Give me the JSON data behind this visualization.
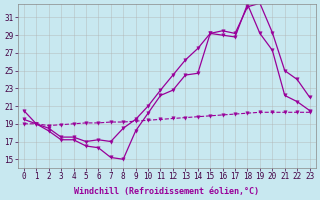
{
  "background_color": "#c8e8f0",
  "grid_color": "#b0b0b0",
  "line_color": "#990099",
  "xlabel": "Windchill (Refroidissement éolien,°C)",
  "ylabel_ticks": [
    15,
    17,
    19,
    21,
    23,
    25,
    27,
    29,
    31
  ],
  "xlim": [
    -0.5,
    23.5
  ],
  "ylim": [
    14.0,
    32.5
  ],
  "x_ticks": [
    0,
    1,
    2,
    3,
    4,
    5,
    6,
    7,
    8,
    9,
    10,
    11,
    12,
    13,
    14,
    15,
    16,
    17,
    18,
    19,
    20,
    21,
    22,
    23
  ],
  "series": [
    {
      "x": [
        0,
        1,
        2,
        3,
        4,
        5,
        6,
        7,
        8,
        9,
        10,
        11,
        12,
        13,
        14,
        15,
        16,
        17,
        18,
        19,
        20,
        21,
        22,
        23
      ],
      "y": [
        20.5,
        19.0,
        18.2,
        17.2,
        17.2,
        16.5,
        16.3,
        15.2,
        15.0,
        18.2,
        20.2,
        22.2,
        22.8,
        24.5,
        24.7,
        29.2,
        29.5,
        29.2,
        32.2,
        32.6,
        29.3,
        25.0,
        24.0,
        22.0
      ],
      "style": "-",
      "marker": "v",
      "markersize": 2.5,
      "linewidth": 0.9
    },
    {
      "x": [
        0,
        1,
        2,
        3,
        4,
        5,
        6,
        7,
        8,
        9,
        10,
        11,
        12,
        13,
        14,
        15,
        16,
        17,
        18,
        19,
        20,
        21,
        22,
        23
      ],
      "y": [
        19.5,
        19.0,
        18.5,
        17.5,
        17.5,
        17.0,
        17.2,
        17.0,
        18.5,
        19.5,
        21.0,
        22.8,
        24.5,
        26.2,
        27.5,
        29.2,
        29.0,
        28.8,
        32.5,
        29.2,
        27.3,
        22.2,
        21.5,
        20.5
      ],
      "style": "-",
      "marker": "v",
      "markersize": 2.5,
      "linewidth": 0.9
    },
    {
      "x": [
        0,
        1,
        2,
        3,
        4,
        5,
        6,
        7,
        8,
        9,
        10,
        11,
        12,
        13,
        14,
        15,
        16,
        17,
        18,
        19,
        20,
        21,
        22,
        23
      ],
      "y": [
        19.0,
        19.0,
        18.8,
        18.9,
        19.0,
        19.1,
        19.1,
        19.2,
        19.2,
        19.3,
        19.4,
        19.5,
        19.6,
        19.7,
        19.8,
        19.9,
        20.0,
        20.1,
        20.2,
        20.3,
        20.3,
        20.3,
        20.3,
        20.3
      ],
      "style": "--",
      "marker": "v",
      "markersize": 2.5,
      "linewidth": 0.8
    }
  ],
  "tick_fontsize": 5.5,
  "xlabel_fontsize": 6.0,
  "font_family": "monospace"
}
